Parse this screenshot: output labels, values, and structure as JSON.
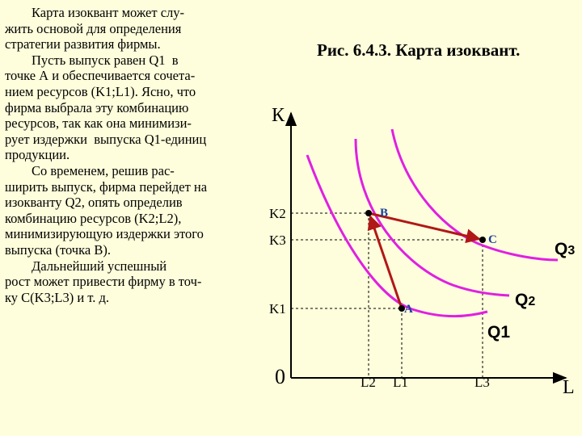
{
  "text_lines": [
    "        Карта изоквант может слу-",
    "жить основой для определения",
    "стратегии развития фирмы.",
    "        Пусть выпуск равен Q1  в",
    "точке А и обеспечивается сочета-",
    "нием ресурсов (K1;L1). Ясно, что",
    "фирма выбрала эту комбинацию",
    "ресурсов, так как она минимизи-",
    "рует издержки  выпуска Q1-единиц",
    "продукции.",
    "        Со временем, решив рас-",
    "ширить выпуск, фирма перейдет на",
    "изокванту Q2, опять определив",
    "комбинацию ресурсов (K2;L2),",
    "минимизирующую издержки этого",
    "выпуска (точка В).",
    "        Дальнейший успешный",
    "рост может привести фирму в точ-",
    "ку С(K3;L3) и т. д."
  ],
  "caption": "Рис. 6.4.3. Карта изоквант.",
  "axes": {
    "y": "К",
    "x": "L",
    "origin": "0"
  },
  "y_ticks": [
    "K2",
    "K3",
    "K1"
  ],
  "x_ticks": [
    "L2",
    "L1",
    "L3"
  ],
  "points": [
    "В",
    "С",
    "А"
  ],
  "isoquants": [
    {
      "q": "Q",
      "sub": "1"
    },
    {
      "q": "Q",
      "sub": "2"
    },
    {
      "q": "Q",
      "sub": "3"
    }
  ],
  "colors": {
    "background": "#fefedc",
    "isoquant": "#e020e0",
    "path": "#b01818",
    "point_label": "#1a3f9a",
    "axis": "#000000"
  }
}
